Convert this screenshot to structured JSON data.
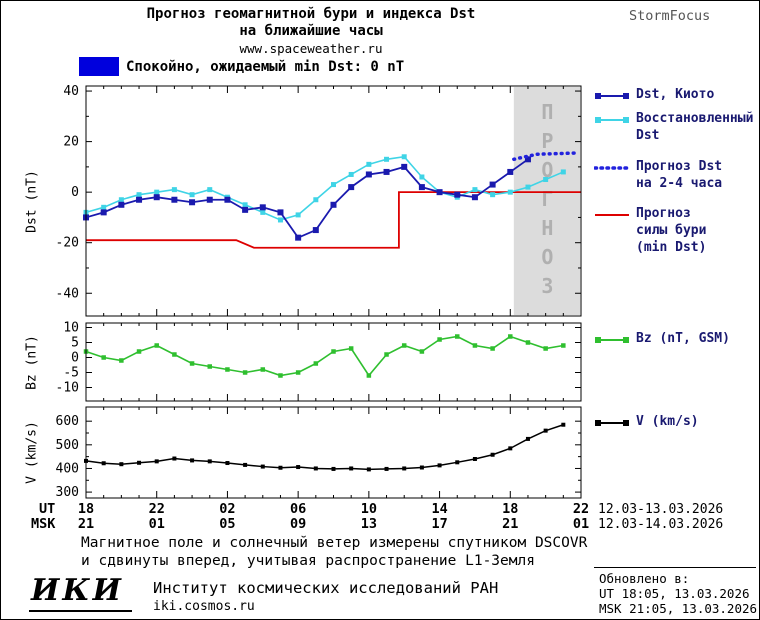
{
  "header": {
    "title_line1": "Прогноз геомагнитной бури и индекса Dst",
    "title_line2": "на ближайшие часы",
    "website": "www.spaceweather.ru",
    "brand": "StormFocus"
  },
  "status": {
    "text": "Спокойно, ожидаемый min Dst: 0 nT",
    "color": "#0000dd"
  },
  "legend": {
    "text_color": "#191970",
    "entries": [
      {
        "id": "kyoto",
        "label": "Dst, Киото",
        "style": "line-squares",
        "color": "#1a1aae"
      },
      {
        "id": "restored",
        "label": "Восстановленный\nDst",
        "style": "line-squares",
        "color": "#3fd4e6"
      },
      {
        "id": "forecast",
        "label": "Прогноз Dst\nна 2-4 часа",
        "style": "dotted",
        "color": "#2222dd"
      },
      {
        "id": "storm",
        "label": "Прогноз\nсилы бури\n(min Dst)",
        "style": "line",
        "color": "#dd0000"
      },
      {
        "id": "bz",
        "label": "Bz (nT, GSM)",
        "style": "line-squares",
        "color": "#2fbf2f"
      },
      {
        "id": "v",
        "label": "V (km/s)",
        "style": "line-squares",
        "color": "#000000"
      }
    ]
  },
  "chart_data": {
    "type": "line",
    "title": "Прогноз геомагнитной бури и индекса Dst на ближайшие часы",
    "colors": {
      "forecast_region": "#dcdcdc",
      "forecast_label": "#b0b0b0",
      "frame": "#000000"
    },
    "xaxis": {
      "ut_label": "UT",
      "msk_label": "MSK",
      "tick_hours": [
        0,
        4,
        8,
        12,
        16,
        20,
        24,
        28
      ],
      "ut_ticks": [
        "18",
        "22",
        "02",
        "06",
        "10",
        "14",
        "18",
        "22"
      ],
      "msk_ticks": [
        "21",
        "01",
        "05",
        "09",
        "13",
        "17",
        "21",
        "01"
      ],
      "ut_date_range": "12.03-13.03.2026",
      "msk_date_range": "12.03-14.03.2026",
      "hours_span": 28
    },
    "panels": [
      {
        "id": "dst",
        "ylabel": "Dst (nT)",
        "yticks": [
          40,
          20,
          0,
          -20,
          -40
        ],
        "yminor": [
          30,
          10,
          -10,
          -30
        ],
        "ylim": [
          -49,
          42
        ],
        "forecast_region": {
          "start_hour": 24.2,
          "end_hour": 28,
          "label": "ПРОГНОЗ"
        },
        "series": [
          {
            "id": "storm-forecast",
            "name": "Прогноз силы бури (min Dst)",
            "color": "#dd0000",
            "width": 1.8,
            "points": [
              [
                0,
                -19
              ],
              [
                8.5,
                -19
              ],
              [
                9.5,
                -22
              ],
              [
                17.7,
                -22
              ],
              [
                17.7,
                0
              ],
              [
                28,
                0
              ]
            ]
          },
          {
            "id": "restored",
            "name": "Восстановленный Dst",
            "color": "#3fd4e6",
            "width": 1.6,
            "marker": "square",
            "marker_size": 5,
            "start_hour": 0,
            "step": 1,
            "values": [
              -8,
              -6,
              -3,
              -1,
              0,
              1,
              -1,
              1,
              -2,
              -5,
              -8,
              -11,
              -9,
              -3,
              3,
              7,
              11,
              13,
              14,
              6,
              0,
              -2,
              1,
              -1,
              0,
              2,
              5,
              8
            ]
          },
          {
            "id": "kyoto",
            "name": "Dst, Киото",
            "color": "#1a1aae",
            "width": 1.8,
            "marker": "square",
            "marker_size": 6,
            "start_hour": 0,
            "step": 1,
            "values": [
              -10,
              -8,
              -5,
              -3,
              -2,
              -3,
              -4,
              -3,
              -3,
              -7,
              -6,
              -8,
              -18,
              -15,
              -5,
              2,
              7,
              8,
              10,
              2,
              0,
              -1,
              -2,
              3,
              8,
              13
            ]
          },
          {
            "id": "dst-forecast",
            "name": "Прогноз Dst на 2-4 часа",
            "color": "#2222dd",
            "width": 3.5,
            "dash": "0.8 5.2",
            "linecap": "round",
            "points": [
              [
                24.2,
                13
              ],
              [
                25.5,
                15
              ],
              [
                27.8,
                15.5
              ]
            ]
          }
        ]
      },
      {
        "id": "bz",
        "ylabel": "Bz (nT)",
        "yticks": [
          10,
          5,
          0,
          -5,
          -10
        ],
        "yminor": [],
        "ylim": [
          -14.5,
          11.5
        ],
        "series": [
          {
            "id": "bz",
            "name": "Bz (nT, GSM)",
            "color": "#2fbf2f",
            "width": 1.6,
            "marker": "square",
            "marker_size": 4.5,
            "start_hour": 0,
            "step": 1,
            "values": [
              2,
              0,
              -1,
              2,
              4,
              1,
              -2,
              -3,
              -4,
              -5,
              -4,
              -6,
              -5,
              -2,
              2,
              3,
              -6,
              1,
              4,
              2,
              6,
              7,
              4,
              3,
              7,
              5,
              3,
              4
            ]
          }
        ]
      },
      {
        "id": "v",
        "ylabel": "V (km/s)",
        "yticks": [
          600,
          500,
          400,
          300
        ],
        "yminor": [
          550,
          450,
          350
        ],
        "ylim": [
          275,
          660
        ],
        "series": [
          {
            "id": "v",
            "name": "V (km/s)",
            "color": "#000000",
            "width": 1.5,
            "marker": "square",
            "marker_size": 4,
            "start_hour": 0,
            "step": 1,
            "values": [
              432,
              422,
              418,
              424,
              430,
              442,
              434,
              430,
              423,
              415,
              408,
              403,
              406,
              400,
              398,
              400,
              396,
              398,
              400,
              404,
              413,
              426,
              440,
              458,
              485,
              525,
              560,
              585
            ]
          }
        ]
      }
    ]
  },
  "footer": {
    "note_line1": "Магнитное поле и солнечный ветер измерены спутником DSCOVR",
    "note_line2": "и сдвинуты вперед, учитывая распространение L1-Земля",
    "logo": "ИКИ",
    "institute": "Институт космических исследований РАН",
    "iki_url": "iki.cosmos.ru"
  },
  "updated": {
    "label": "Обновлено в:",
    "ut": "UT  18:05, 13.03.2026",
    "msk": "MSK 21:05, 13.03.2026"
  }
}
